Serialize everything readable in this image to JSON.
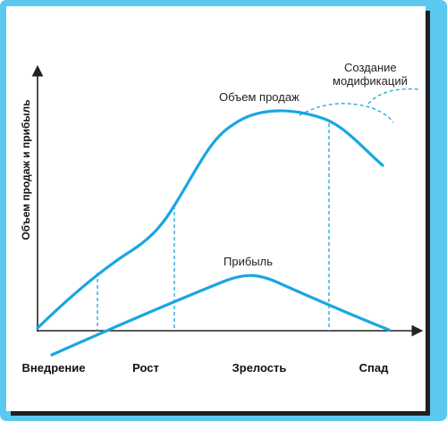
{
  "diagram": {
    "y_axis_label": "Объем продаж и прибыль",
    "curves": {
      "sales_label": "Объем продаж",
      "profit_label": "Прибыль",
      "modifications_label_line1": "Создание",
      "modifications_label_line2": "модификаций"
    },
    "stages": [
      "Внедрение",
      "Рост",
      "Зрелость",
      "Спад"
    ],
    "colors": {
      "frame": "#5ac8f0",
      "curve": "#1aa6e0",
      "axis": "#222222"
    }
  }
}
